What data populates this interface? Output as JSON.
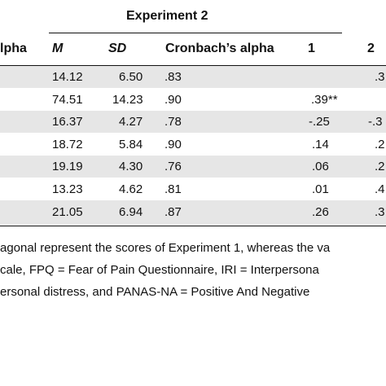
{
  "header": {
    "experiment_title": "Experiment 2",
    "col_prev_partial": "lpha",
    "col_m": "M",
    "col_sd": "SD",
    "col_alpha": "Cronbach’s alpha",
    "col_1": "1",
    "col_2": "2"
  },
  "rows": [
    {
      "m": "14.12",
      "sd": "6.50",
      "alpha": ".83",
      "c1": "",
      "c2": ".3"
    },
    {
      "m": "74.51",
      "sd": "14.23",
      "alpha": ".90",
      "c1": ".39**",
      "c2": ""
    },
    {
      "m": "16.37",
      "sd": "4.27",
      "alpha": ".78",
      "c1": "-.25",
      "c2": "-.3"
    },
    {
      "m": "18.72",
      "sd": "5.84",
      "alpha": ".90",
      "c1": ".14",
      "c2": ".2"
    },
    {
      "m": "19.19",
      "sd": "4.30",
      "alpha": ".76",
      "c1": ".06",
      "c2": ".2"
    },
    {
      "m": "13.23",
      "sd": "4.62",
      "alpha": ".81",
      "c1": ".01",
      "c2": ".4"
    },
    {
      "m": "21.05",
      "sd": "6.94",
      "alpha": ".87",
      "c1": ".26",
      "c2": ".3"
    }
  ],
  "notes": [
    "agonal represent the scores of Experiment 1, whereas the va",
    "cale, FPQ = Fear of Pain Questionnaire, IRI = Interpersona",
    "ersonal distress, and PANAS-NA = Positive And Negative"
  ]
}
